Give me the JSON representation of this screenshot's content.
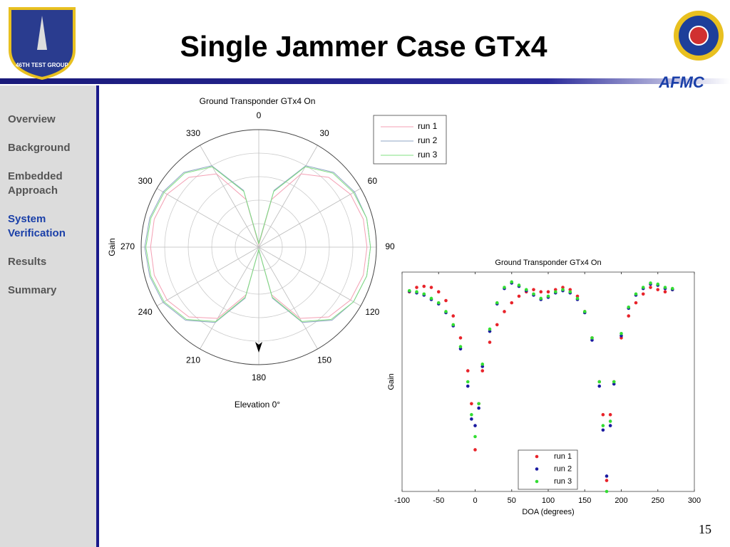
{
  "header": {
    "title": "Single Jammer Case GTx4"
  },
  "logos": {
    "left": "46TH TEST GROUP",
    "right": "AFMC"
  },
  "nav": {
    "items": [
      "Overview",
      "Background",
      "Embedded Approach",
      "System Verification",
      "Results",
      "Summary"
    ],
    "active": 3
  },
  "page_number": "15",
  "chart_data": [
    {
      "type": "polar",
      "title": "Ground Transponder GTx4 On",
      "ylabel": "Gain",
      "xlabel": "Elevation 0°",
      "theta": [
        0,
        15,
        30,
        45,
        60,
        75,
        90,
        105,
        120,
        135,
        150,
        165,
        180,
        195,
        210,
        225,
        240,
        255,
        270,
        285,
        300,
        315,
        330,
        345
      ],
      "thetaticks": [
        0,
        30,
        60,
        90,
        120,
        150,
        180,
        210,
        240,
        270,
        300,
        330
      ],
      "rlim": [
        0,
        1
      ],
      "legend": "upper right",
      "series": [
        {
          "name": "run 1",
          "color": "#f4a0b4",
          "values": [
            0.02,
            0.42,
            0.72,
            0.84,
            0.9,
            0.92,
            0.92,
            0.92,
            0.9,
            0.84,
            0.7,
            0.42,
            0.02,
            0.42,
            0.7,
            0.84,
            0.9,
            0.92,
            0.92,
            0.92,
            0.9,
            0.84,
            0.72,
            0.42
          ]
        },
        {
          "name": "run 2",
          "color": "#8fa4c4",
          "values": [
            0.03,
            0.5,
            0.8,
            0.9,
            0.94,
            0.95,
            0.95,
            0.95,
            0.93,
            0.88,
            0.74,
            0.45,
            0.02,
            0.45,
            0.74,
            0.88,
            0.94,
            0.96,
            0.97,
            0.96,
            0.94,
            0.9,
            0.8,
            0.5
          ]
        },
        {
          "name": "run 3",
          "color": "#80e080",
          "values": [
            0.03,
            0.49,
            0.79,
            0.89,
            0.93,
            0.95,
            0.95,
            0.95,
            0.93,
            0.87,
            0.73,
            0.44,
            0.02,
            0.44,
            0.73,
            0.87,
            0.93,
            0.95,
            0.96,
            0.95,
            0.93,
            0.89,
            0.79,
            0.49
          ]
        }
      ]
    },
    {
      "type": "scatter",
      "title": "Ground Transponder GTx4 On",
      "xlabel": "DOA (degrees)",
      "ylabel": "Gain",
      "x": [
        -90,
        -80,
        -70,
        -60,
        -50,
        -40,
        -30,
        -20,
        -10,
        -5,
        0,
        5,
        10,
        20,
        30,
        40,
        50,
        60,
        70,
        80,
        90,
        100,
        110,
        120,
        130,
        140,
        150,
        160,
        170,
        175,
        180,
        185,
        190,
        200,
        210,
        220,
        230,
        240,
        250,
        260,
        270
      ],
      "xlim": [
        -100,
        300
      ],
      "xticks": [
        -100,
        -50,
        0,
        50,
        100,
        150,
        200,
        250,
        300
      ],
      "ylim": [
        0,
        1
      ],
      "legend": "lower right",
      "series": [
        {
          "name": "run 1",
          "color": "#e8232a",
          "values": [
            0.91,
            0.93,
            0.935,
            0.93,
            0.91,
            0.87,
            0.8,
            0.7,
            0.55,
            0.4,
            0.19,
            0.4,
            0.55,
            0.68,
            0.76,
            0.82,
            0.86,
            0.89,
            0.91,
            0.92,
            0.91,
            0.91,
            0.92,
            0.93,
            0.92,
            0.89,
            0.82,
            0.7,
            0.5,
            0.35,
            0.05,
            0.35,
            0.5,
            0.7,
            0.8,
            0.86,
            0.9,
            0.93,
            0.92,
            0.91,
            0.92
          ]
        },
        {
          "name": "run 2",
          "color": "#1a1aa0",
          "values": [
            0.912,
            0.905,
            0.895,
            0.875,
            0.855,
            0.815,
            0.755,
            0.65,
            0.48,
            0.33,
            0.3,
            0.38,
            0.57,
            0.73,
            0.855,
            0.925,
            0.95,
            0.935,
            0.915,
            0.895,
            0.875,
            0.885,
            0.905,
            0.915,
            0.905,
            0.875,
            0.815,
            0.69,
            0.48,
            0.28,
            0.07,
            0.3,
            0.49,
            0.71,
            0.835,
            0.895,
            0.925,
            0.945,
            0.94,
            0.925,
            0.92
          ]
        },
        {
          "name": "run 3",
          "color": "#33dd33",
          "values": [
            0.915,
            0.91,
            0.9,
            0.88,
            0.86,
            0.82,
            0.76,
            0.66,
            0.5,
            0.35,
            0.25,
            0.4,
            0.58,
            0.74,
            0.86,
            0.93,
            0.955,
            0.94,
            0.92,
            0.9,
            0.88,
            0.89,
            0.91,
            0.92,
            0.91,
            0.88,
            0.82,
            0.7,
            0.5,
            0.3,
            0.0,
            0.32,
            0.5,
            0.72,
            0.84,
            0.9,
            0.93,
            0.95,
            0.945,
            0.93,
            0.925
          ]
        }
      ]
    }
  ]
}
